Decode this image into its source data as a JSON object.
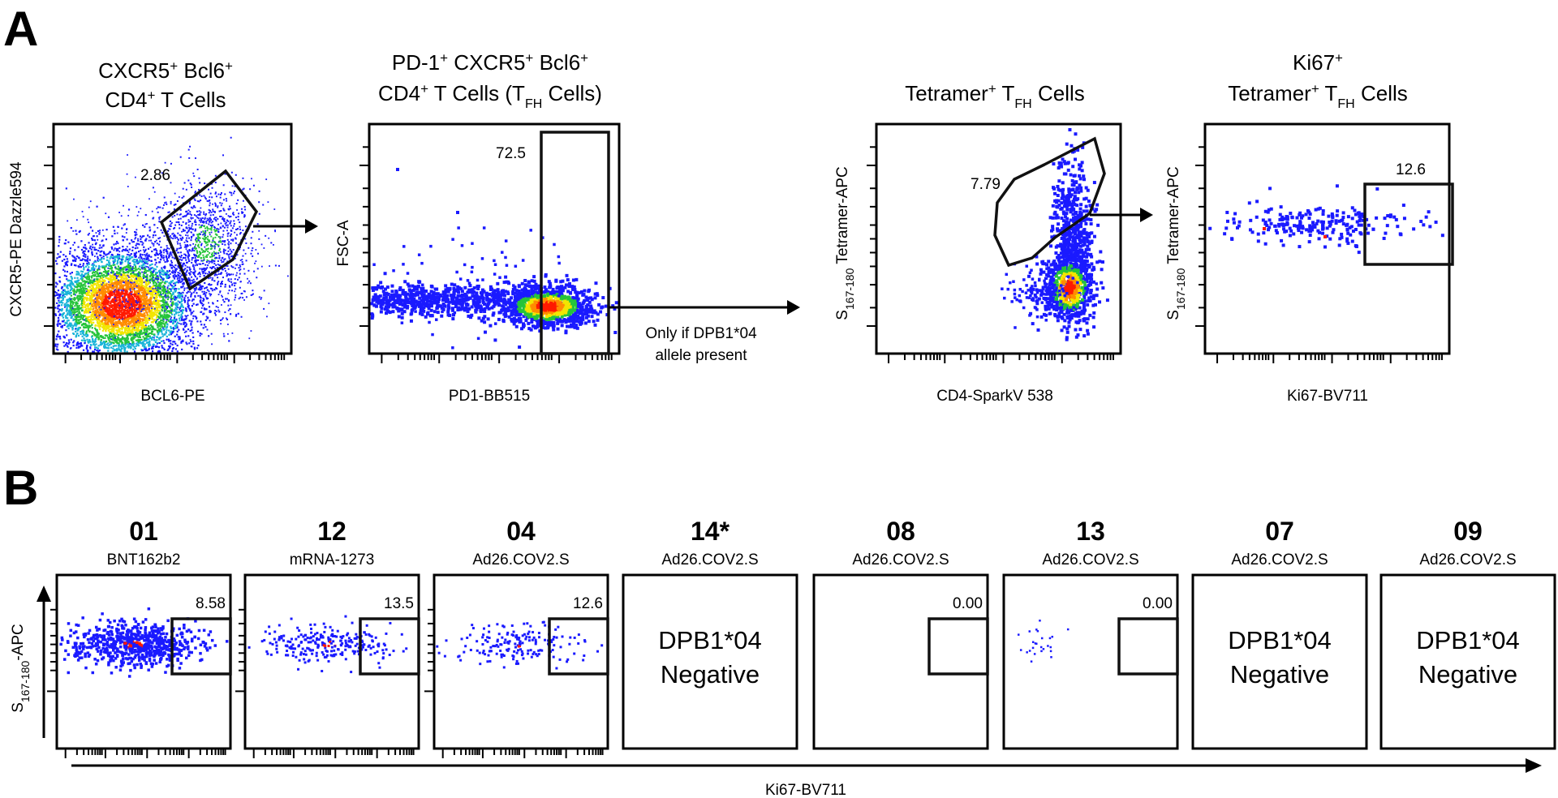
{
  "panel_a": {
    "letter": "A",
    "plots": [
      {
        "title_lines": [
          [
            "CXCR5",
            "+",
            " Bcl6",
            "+"
          ],
          [
            "CD4",
            "+",
            " T Cells"
          ]
        ],
        "xlabel": "BCL6-PE",
        "ylabel": "CXCR5-PE Dazzle594",
        "gate_value": "2.86"
      },
      {
        "title_lines": [
          [
            "PD-1",
            "+",
            " CXCR5",
            "+",
            " Bcl6",
            "+"
          ],
          [
            "CD4",
            "+",
            " T Cells (T",
            "FH",
            " Cells)"
          ]
        ],
        "xlabel": "PD1-BB515",
        "ylabel": "FSC-A",
        "gate_value": "72.5"
      },
      {
        "title_lines": [
          [
            "Tetramer",
            "+",
            " T",
            "FH",
            " Cells"
          ]
        ],
        "xlabel": "CD4-SparkV 538",
        "ylabel": "S167-180 Tetramer-APC",
        "ylabel_parts": [
          "S",
          "167-180",
          " Tetramer-APC"
        ],
        "gate_value": "7.79"
      },
      {
        "title_lines": [
          [
            "Ki67",
            "+"
          ],
          [
            "Tetramer",
            "+",
            " T",
            "FH",
            " Cells"
          ]
        ],
        "xlabel": "Ki67-BV711",
        "ylabel": "S167-180 Tetramer-APC",
        "ylabel_parts": [
          "S",
          "167-180",
          " Tetramer-APC"
        ],
        "gate_value": "12.6"
      }
    ],
    "arrow_note_line1": "Only if DPB1*04",
    "arrow_note_line2": "allele present"
  },
  "panel_b": {
    "letter": "B",
    "samples": [
      {
        "id": "01",
        "vaccine": "BNT162b2",
        "gate_value": "8.58"
      },
      {
        "id": "12",
        "vaccine": "mRNA-1273",
        "gate_value": "13.5"
      },
      {
        "id": "04",
        "vaccine": "Ad26.COV2.S",
        "gate_value": "12.6"
      },
      {
        "id": "14*",
        "vaccine": "Ad26.COV2.S",
        "negative_line1": "DPB1*04",
        "negative_line2": "Negative"
      },
      {
        "id": "08",
        "vaccine": "Ad26.COV2.S",
        "gate_value": "0.00"
      },
      {
        "id": "13",
        "vaccine": "Ad26.COV2.S",
        "gate_value": "0.00"
      },
      {
        "id": "07",
        "vaccine": "Ad26.COV2.S",
        "negative_line1": "DPB1*04",
        "negative_line2": "Negative"
      },
      {
        "id": "09",
        "vaccine": "Ad26.COV2.S",
        "negative_line1": "DPB1*04",
        "negative_line2": "Negative"
      }
    ],
    "ylabel": "S167-180-APC",
    "ylabel_parts": [
      "S",
      "167-180",
      "-APC"
    ],
    "xlabel": "Ki67-BV711"
  },
  "colors": {
    "low": "#1a1aff",
    "mid": "#25c43a",
    "high_yellow": "#f2e600",
    "high": "#ff1a00",
    "gate": "#111111"
  }
}
